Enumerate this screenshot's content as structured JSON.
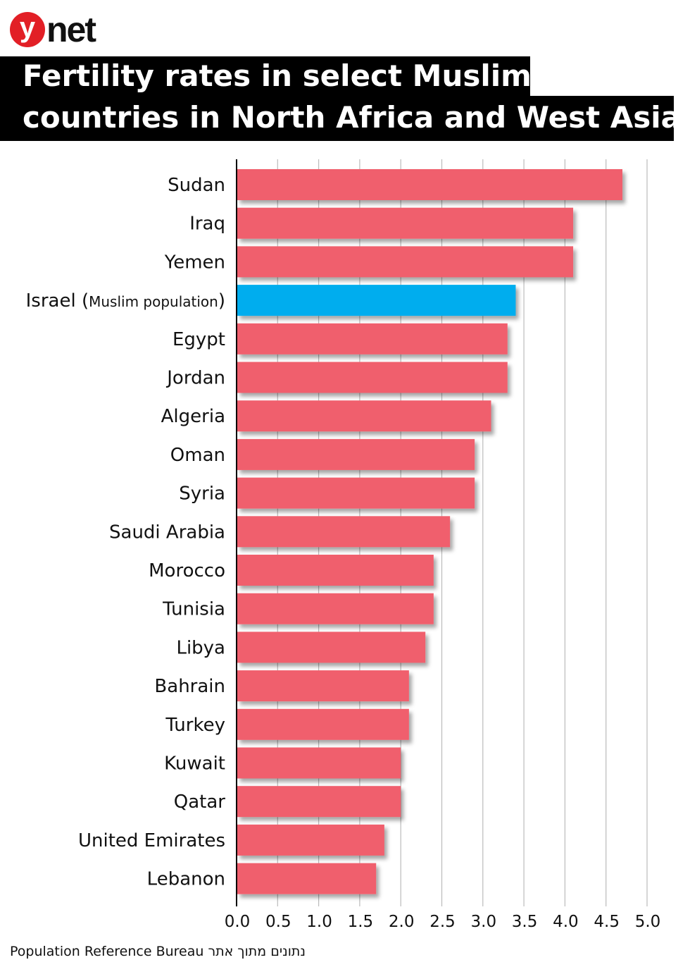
{
  "logo": {
    "y": "y",
    "net": "net",
    "brand_color": "#e21f26"
  },
  "title_lines": [
    "Fertility rates in select Muslim",
    "countries in North Africa and West Asia"
  ],
  "source": "Population Reference Bureau נתונים מתוך אתר",
  "chart_data": {
    "type": "bar",
    "orientation": "horizontal",
    "title": "Fertility rates in select Muslim countries in North Africa and West Asia",
    "categories": [
      "Sudan",
      "Iraq",
      "Yemen",
      "Israel",
      "Egypt",
      "Jordan",
      "Algeria",
      "Oman",
      "Syria",
      "Saudi Arabia",
      "Morocco",
      "Tunisia",
      "Libya",
      "Bahrain",
      "Turkey",
      "Kuwait",
      "Qatar",
      "United Emirates",
      "Lebanon"
    ],
    "category_notes": {
      "Israel": "(Muslim population)"
    },
    "values": [
      4.7,
      4.1,
      4.1,
      3.4,
      3.3,
      3.3,
      3.1,
      2.9,
      2.9,
      2.6,
      2.4,
      2.4,
      2.3,
      2.1,
      2.1,
      2.0,
      2.0,
      1.8,
      1.7
    ],
    "highlight": "Israel",
    "colors": {
      "default": "#f05f6d",
      "highlight": "#00adee"
    },
    "xlim": [
      0,
      5.0
    ],
    "xticks": [
      "0.0",
      "0.5",
      "1.0",
      "1.5",
      "2.0",
      "2.5",
      "3.0",
      "3.5",
      "4.0",
      "4.5",
      "5.0"
    ],
    "grid": true,
    "xlabel": "",
    "ylabel": ""
  }
}
